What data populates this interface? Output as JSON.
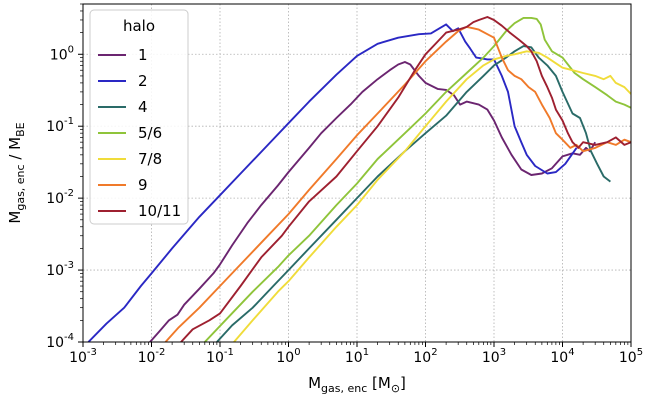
{
  "chart_data": {
    "type": "line",
    "xscale": "log",
    "yscale": "log",
    "xlim": [
      0.001,
      100000
    ],
    "ylim": [
      0.0001,
      5
    ],
    "grid": true,
    "legend_position": "upper-left",
    "legend_title": "halo",
    "xlabel": {
      "main": "M",
      "sub": "gas, enc",
      "tail": " [M",
      "sub2": "⊙",
      "end": "]"
    },
    "ylabel": {
      "main": "M",
      "sub": "gas, enc",
      "mid": " / M",
      "sub2": "BE"
    },
    "x_ticks": [
      {
        "v": 0.001,
        "exp": "-3"
      },
      {
        "v": 0.01,
        "exp": "-2"
      },
      {
        "v": 0.1,
        "exp": "-1"
      },
      {
        "v": 1,
        "exp": "0"
      },
      {
        "v": 10,
        "exp": "1"
      },
      {
        "v": 100,
        "exp": "2"
      },
      {
        "v": 1000,
        "exp": "3"
      },
      {
        "v": 10000,
        "exp": "4"
      },
      {
        "v": 100000,
        "exp": "5"
      }
    ],
    "y_ticks": [
      {
        "v": 0.0001,
        "exp": "-4"
      },
      {
        "v": 0.001,
        "exp": "-3"
      },
      {
        "v": 0.01,
        "exp": "-2"
      },
      {
        "v": 0.1,
        "exp": "-1"
      },
      {
        "v": 1,
        "exp": "0"
      }
    ],
    "series": [
      {
        "name": "1",
        "color": "#6b2570",
        "points": [
          [
            0.0095,
            0.0001
          ],
          [
            0.013,
            0.00014
          ],
          [
            0.018,
            0.0002
          ],
          [
            0.024,
            0.00024
          ],
          [
            0.03,
            0.00033
          ],
          [
            0.05,
            0.00055
          ],
          [
            0.08,
            0.0009
          ],
          [
            0.1,
            0.0012
          ],
          [
            0.15,
            0.0022
          ],
          [
            0.25,
            0.0045
          ],
          [
            0.4,
            0.008
          ],
          [
            0.7,
            0.015
          ],
          [
            1,
            0.023
          ],
          [
            2,
            0.05
          ],
          [
            3,
            0.08
          ],
          [
            5,
            0.13
          ],
          [
            8,
            0.2
          ],
          [
            12,
            0.3
          ],
          [
            20,
            0.45
          ],
          [
            30,
            0.6
          ],
          [
            40,
            0.72
          ],
          [
            50,
            0.78
          ],
          [
            60,
            0.72
          ],
          [
            80,
            0.5
          ],
          [
            100,
            0.4
          ],
          [
            150,
            0.33
          ],
          [
            200,
            0.32
          ],
          [
            260,
            0.27
          ],
          [
            320,
            0.2
          ],
          [
            400,
            0.22
          ],
          [
            600,
            0.2
          ],
          [
            800,
            0.17
          ],
          [
            1000,
            0.12
          ],
          [
            1300,
            0.07
          ],
          [
            1800,
            0.04
          ],
          [
            2500,
            0.025
          ],
          [
            3500,
            0.021
          ],
          [
            5000,
            0.022
          ],
          [
            7000,
            0.026
          ],
          [
            10000,
            0.038
          ],
          [
            14000,
            0.042
          ],
          [
            18000,
            0.04
          ],
          [
            22000,
            0.05
          ],
          [
            25000,
            0.045
          ],
          [
            30000,
            0.06
          ]
        ]
      },
      {
        "name": "2",
        "color": "#2a28c4",
        "points": [
          [
            0.0012,
            0.0001
          ],
          [
            0.0022,
            0.00018
          ],
          [
            0.004,
            0.0003
          ],
          [
            0.007,
            0.0006
          ],
          [
            0.01,
            0.0009
          ],
          [
            0.02,
            0.002
          ],
          [
            0.05,
            0.0055
          ],
          [
            0.1,
            0.011
          ],
          [
            0.2,
            0.022
          ],
          [
            0.5,
            0.055
          ],
          [
            1,
            0.11
          ],
          [
            2,
            0.22
          ],
          [
            5,
            0.52
          ],
          [
            10,
            0.95
          ],
          [
            20,
            1.4
          ],
          [
            40,
            1.7
          ],
          [
            80,
            1.9
          ],
          [
            120,
            1.95
          ],
          [
            160,
            2.3
          ],
          [
            200,
            2.6
          ],
          [
            250,
            2.1
          ],
          [
            300,
            2.3
          ],
          [
            380,
            1.5
          ],
          [
            450,
            1.2
          ],
          [
            550,
            0.9
          ],
          [
            650,
            0.88
          ],
          [
            800,
            0.85
          ],
          [
            1000,
            0.85
          ],
          [
            1300,
            0.5
          ],
          [
            1600,
            0.3
          ],
          [
            2000,
            0.1
          ],
          [
            2500,
            0.06
          ],
          [
            3000,
            0.04
          ],
          [
            4000,
            0.028
          ],
          [
            6000,
            0.022
          ],
          [
            8000,
            0.023
          ],
          [
            11000,
            0.03
          ],
          [
            16000,
            0.05
          ]
        ]
      },
      {
        "name": "4",
        "color": "#2a6b68",
        "points": [
          [
            0.09,
            0.0001
          ],
          [
            0.15,
            0.00017
          ],
          [
            0.3,
            0.0003
          ],
          [
            0.6,
            0.0006
          ],
          [
            1,
            0.001
          ],
          [
            2,
            0.002
          ],
          [
            5,
            0.005
          ],
          [
            10,
            0.01
          ],
          [
            20,
            0.02
          ],
          [
            50,
            0.045
          ],
          [
            100,
            0.08
          ],
          [
            200,
            0.14
          ],
          [
            400,
            0.3
          ],
          [
            700,
            0.5
          ],
          [
            1000,
            0.7
          ],
          [
            1500,
            0.9
          ],
          [
            2000,
            1.1
          ],
          [
            2700,
            1.3
          ],
          [
            3500,
            1.25
          ],
          [
            4500,
            0.9
          ],
          [
            6000,
            0.7
          ],
          [
            8000,
            0.5
          ],
          [
            10000,
            0.3
          ],
          [
            14000,
            0.15
          ],
          [
            18000,
            0.13
          ],
          [
            22000,
            0.08
          ],
          [
            26000,
            0.045
          ],
          [
            32000,
            0.03
          ],
          [
            40000,
            0.02
          ],
          [
            50000,
            0.017
          ]
        ]
      },
      {
        "name": "5/6",
        "color": "#8fc43a",
        "points": [
          [
            0.06,
            0.0001
          ],
          [
            0.12,
            0.0002
          ],
          [
            0.3,
            0.0005
          ],
          [
            0.7,
            0.0011
          ],
          [
            1,
            0.0016
          ],
          [
            2,
            0.003
          ],
          [
            5,
            0.008
          ],
          [
            10,
            0.016
          ],
          [
            20,
            0.035
          ],
          [
            50,
            0.08
          ],
          [
            100,
            0.15
          ],
          [
            200,
            0.3
          ],
          [
            400,
            0.55
          ],
          [
            700,
            0.9
          ],
          [
            1000,
            1.3
          ],
          [
            1500,
            2.1
          ],
          [
            2000,
            2.7
          ],
          [
            2700,
            3.2
          ],
          [
            3500,
            3.2
          ],
          [
            4200,
            3.1
          ],
          [
            4800,
            2.6
          ],
          [
            5500,
            1.6
          ],
          [
            7000,
            1.1
          ],
          [
            10000,
            0.9
          ],
          [
            15000,
            0.55
          ],
          [
            20000,
            0.45
          ],
          [
            30000,
            0.35
          ],
          [
            45000,
            0.27
          ],
          [
            60000,
            0.22
          ],
          [
            80000,
            0.2
          ],
          [
            100000,
            0.18
          ]
        ]
      },
      {
        "name": "7/8",
        "color": "#f0dc3a",
        "points": [
          [
            0.16,
            0.0001
          ],
          [
            0.3,
            0.0002
          ],
          [
            0.7,
            0.0005
          ],
          [
            1,
            0.0007
          ],
          [
            2,
            0.0015
          ],
          [
            5,
            0.004
          ],
          [
            10,
            0.008
          ],
          [
            20,
            0.018
          ],
          [
            50,
            0.045
          ],
          [
            100,
            0.1
          ],
          [
            200,
            0.22
          ],
          [
            400,
            0.45
          ],
          [
            700,
            0.7
          ],
          [
            1000,
            0.85
          ],
          [
            1500,
            0.95
          ],
          [
            2000,
            1.0
          ],
          [
            3000,
            1.1
          ],
          [
            4500,
            1.05
          ],
          [
            6000,
            0.9
          ],
          [
            8000,
            0.75
          ],
          [
            10000,
            0.65
          ],
          [
            14000,
            0.6
          ],
          [
            20000,
            0.55
          ],
          [
            30000,
            0.5
          ],
          [
            40000,
            0.45
          ],
          [
            50000,
            0.5
          ],
          [
            60000,
            0.4
          ],
          [
            80000,
            0.35
          ],
          [
            100000,
            0.28
          ]
        ]
      },
      {
        "name": "9",
        "color": "#f07a2a",
        "points": [
          [
            0.016,
            0.0001
          ],
          [
            0.025,
            0.00016
          ],
          [
            0.05,
            0.0003
          ],
          [
            0.1,
            0.0006
          ],
          [
            0.2,
            0.0012
          ],
          [
            0.5,
            0.003
          ],
          [
            1,
            0.006
          ],
          [
            2,
            0.013
          ],
          [
            5,
            0.035
          ],
          [
            10,
            0.075
          ],
          [
            20,
            0.15
          ],
          [
            50,
            0.38
          ],
          [
            100,
            0.8
          ],
          [
            200,
            1.5
          ],
          [
            300,
            2.1
          ],
          [
            400,
            2.4
          ],
          [
            500,
            2.3
          ],
          [
            600,
            2.2
          ],
          [
            800,
            1.9
          ],
          [
            1000,
            1.7
          ],
          [
            1300,
            0.9
          ],
          [
            1600,
            0.6
          ],
          [
            2000,
            0.5
          ],
          [
            2500,
            0.45
          ],
          [
            3200,
            0.35
          ],
          [
            4000,
            0.3
          ],
          [
            5000,
            0.2
          ],
          [
            6500,
            0.13
          ],
          [
            8000,
            0.08
          ],
          [
            10000,
            0.065
          ],
          [
            13000,
            0.05
          ],
          [
            16000,
            0.055
          ],
          [
            20000,
            0.045
          ],
          [
            30000,
            0.05
          ],
          [
            45000,
            0.06
          ],
          [
            60000,
            0.055
          ],
          [
            80000,
            0.065
          ],
          [
            100000,
            0.06
          ]
        ]
      },
      {
        "name": "10/11",
        "color": "#9e2030",
        "points": [
          [
            0.027,
            0.0001
          ],
          [
            0.04,
            0.00015
          ],
          [
            0.07,
            0.0002
          ],
          [
            0.1,
            0.00025
          ],
          [
            0.2,
            0.0006
          ],
          [
            0.4,
            0.0015
          ],
          [
            0.8,
            0.003
          ],
          [
            1,
            0.004
          ],
          [
            2,
            0.009
          ],
          [
            5,
            0.02
          ],
          [
            10,
            0.045
          ],
          [
            20,
            0.1
          ],
          [
            40,
            0.25
          ],
          [
            70,
            0.6
          ],
          [
            100,
            1.0
          ],
          [
            150,
            1.5
          ],
          [
            200,
            2.0
          ],
          [
            300,
            2.2
          ],
          [
            400,
            2.4
          ],
          [
            500,
            2.8
          ],
          [
            600,
            3.0
          ],
          [
            800,
            3.3
          ],
          [
            1000,
            3.0
          ],
          [
            1300,
            2.5
          ],
          [
            1700,
            2.0
          ],
          [
            2300,
            1.6
          ],
          [
            3000,
            1.3
          ],
          [
            3500,
            1.1
          ],
          [
            4200,
            0.8
          ],
          [
            5000,
            0.5
          ],
          [
            6000,
            0.35
          ],
          [
            7000,
            0.25
          ],
          [
            8000,
            0.17
          ],
          [
            10000,
            0.12
          ],
          [
            12000,
            0.08
          ],
          [
            14000,
            0.06
          ],
          [
            17000,
            0.05
          ],
          [
            20000,
            0.06
          ],
          [
            30000,
            0.055
          ],
          [
            45000,
            0.06
          ],
          [
            60000,
            0.07
          ],
          [
            80000,
            0.055
          ],
          [
            100000,
            0.06
          ]
        ]
      }
    ]
  }
}
